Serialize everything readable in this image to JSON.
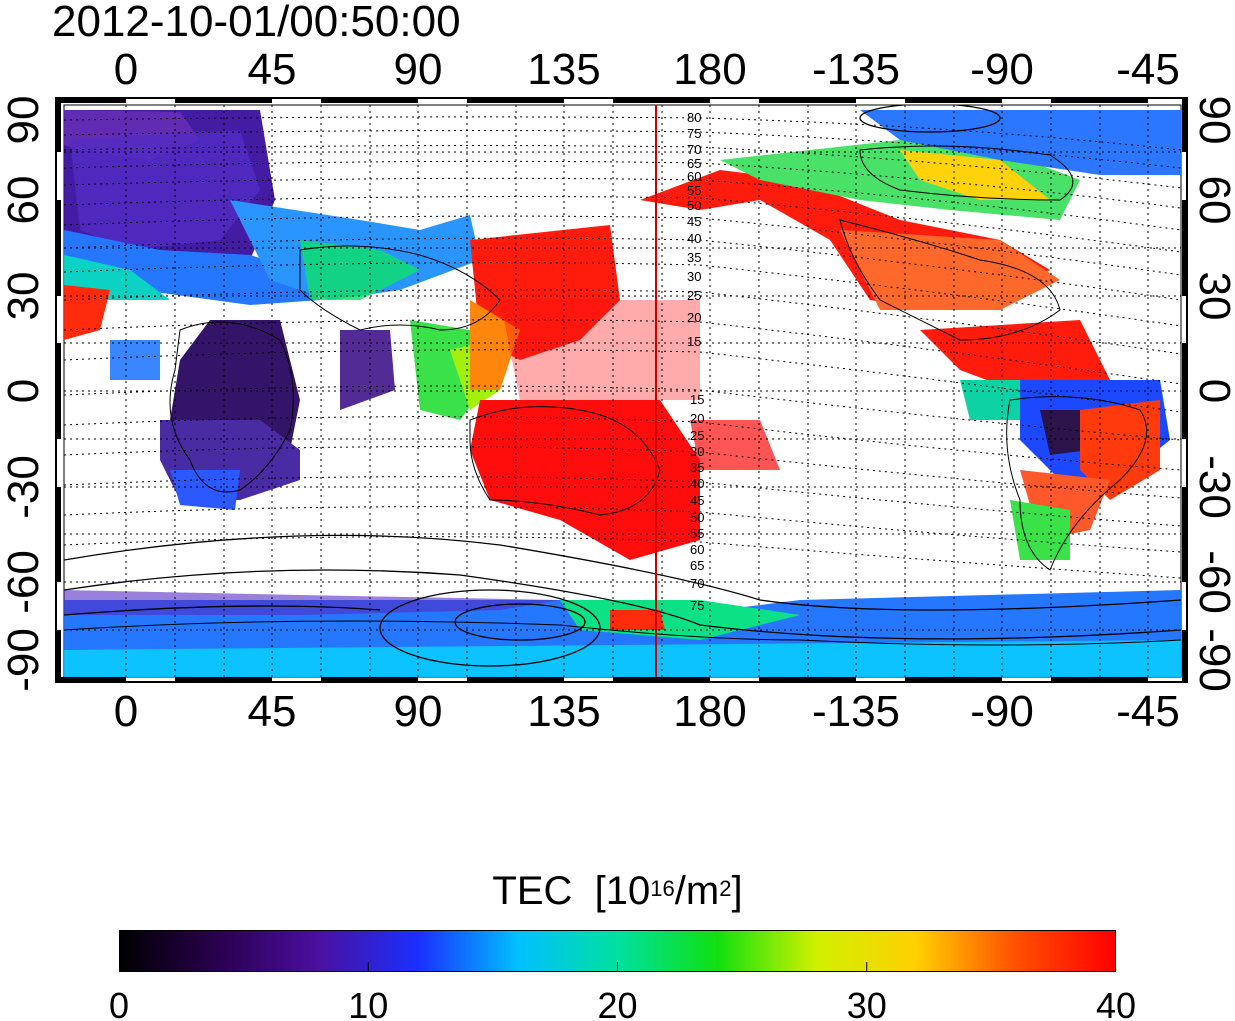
{
  "title": "2012-10-01/00:50:00",
  "map": {
    "lon_ticks": [
      "0",
      "45",
      "90",
      "135",
      "180",
      "-135",
      "-90",
      "-45"
    ],
    "lat_ticks": [
      "90",
      "60",
      "30",
      "0",
      "-30",
      "-60",
      "-90"
    ],
    "marker_meridian_color": "#cc0000",
    "north_contour_labels": [
      "80",
      "75",
      "70",
      "65",
      "60",
      "55",
      "50",
      "45",
      "40",
      "35",
      "30",
      "25",
      "20",
      "15"
    ],
    "south_contour_labels": [
      "15",
      "20",
      "25",
      "30",
      "35",
      "40",
      "45",
      "50",
      "55",
      "60",
      "65",
      "70",
      "75"
    ]
  },
  "colorbar": {
    "title_text": "TEC",
    "unit_prefix": "[10",
    "unit_exp": "16",
    "unit_mid": "/m",
    "unit_exp2": "2",
    "unit_suffix": "]",
    "tick_labels": [
      "0",
      "10",
      "20",
      "30",
      "40"
    ],
    "colormap": [
      "#000000",
      "#2a0050",
      "#4a10a0",
      "#1a30ff",
      "#00c0ff",
      "#00e0a0",
      "#10e010",
      "#d0f000",
      "#ffd000",
      "#ff5000",
      "#ff0000"
    ]
  }
}
